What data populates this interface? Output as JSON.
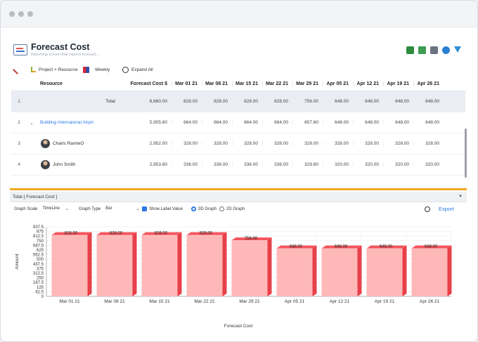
{
  "header": {
    "title": "Forecast Cost",
    "subtitle": "Reporting screen that reports forecast ..."
  },
  "toolbar": {
    "group_label": "Project + Resource",
    "period_label": "Weekly",
    "expand_label": "Expand All"
  },
  "grid": {
    "col_resource": "Resource",
    "col_forecast": "Forecast Cost $",
    "weeks": [
      "Mar 01 21",
      "Mar 08 21",
      "Mar 15 21",
      "Mar 22 21",
      "Mar 29 21",
      "Apr 05 21",
      "Apr 12 21",
      "Apr 19 21",
      "Apr 26 21"
    ],
    "rows": [
      {
        "num": "1",
        "expander": "",
        "name": "Total",
        "forecast": "6,660.00",
        "values": [
          "828.00",
          "828.00",
          "828.00",
          "828.00",
          "756.00",
          "648.00",
          "648.00",
          "648.00",
          "648.00"
        ]
      },
      {
        "num": "2",
        "expander": "⌄",
        "name": "Building Internaional Airprt",
        "forecast": "5,905.60",
        "values": [
          "664.00",
          "664.00",
          "664.00",
          "664.00",
          "657.60",
          "648.00",
          "648.00",
          "648.00",
          "648.00"
        ]
      },
      {
        "num": "3",
        "expander": "",
        "name": "Charls RamieO",
        "forecast": "2,952.00",
        "values": [
          "328.00",
          "328.00",
          "328.00",
          "328.00",
          "328.00",
          "328.00",
          "328.00",
          "328.00",
          "328.00"
        ]
      },
      {
        "num": "4",
        "expander": "",
        "name": "John Smith",
        "forecast": "2,953.60",
        "values": [
          "336.00",
          "336.00",
          "336.00",
          "336.00",
          "329.60",
          "320.00",
          "320.00",
          "320.00",
          "320.00"
        ]
      }
    ]
  },
  "chart_panel": {
    "title": "Total [ Forecast Cost ]",
    "graph_scale_label": "Graph Scale",
    "graph_scale_value": "TimeLine",
    "graph_type_label": "Graph Type",
    "graph_type_value": "Bar",
    "show_label_value": "Show Label Value",
    "graph3d": "3D Graph",
    "graph2d": "2D Graph",
    "export": "Export"
  },
  "chart_data": {
    "type": "bar",
    "categories": [
      "Mar 01 21",
      "Mar 08 21",
      "Mar 15 21",
      "Mar 22 21",
      "Mar 29 21",
      "Apr 05 21",
      "Apr 12 21",
      "Apr 19 21",
      "Apr 26 21"
    ],
    "values": [
      828,
      828,
      828,
      828,
      756,
      648,
      648,
      648,
      648
    ],
    "value_labels": [
      "828.00",
      "828.00",
      "828.00",
      "828.00",
      "756.00",
      "648.00",
      "648.00",
      "648.00",
      "648.00"
    ],
    "xlabel": "Forecast Cost",
    "ylabel": "Amount",
    "yticks": [
      "937.5",
      "875",
      "812.5",
      "750",
      "687.5",
      "625",
      "562.5",
      "500",
      "437.5",
      "375",
      "312.5",
      "250",
      "187.5",
      "125",
      "62.5",
      "0"
    ],
    "ylim": [
      0,
      937.5
    ],
    "grid": true,
    "colors": {
      "front": "#ffb8b8",
      "side": "#e8404a",
      "top": "#f4545c"
    }
  },
  "colors": {
    "accent": "#2b78e4",
    "splitter": "#f5a623",
    "link": "#2b78e4"
  }
}
